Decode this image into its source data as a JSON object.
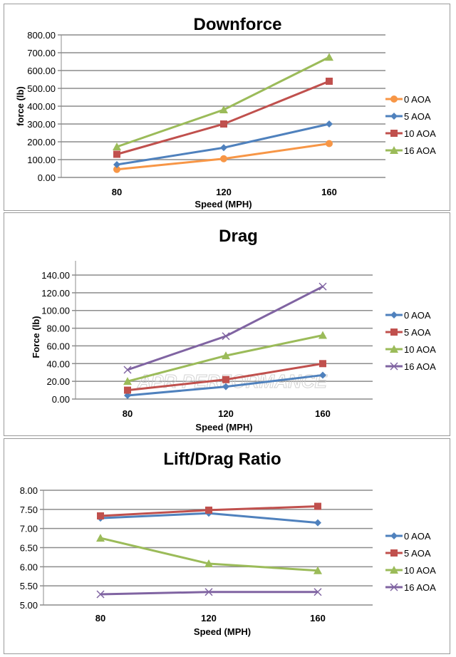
{
  "chart_data": [
    {
      "type": "line",
      "title": "Downforce",
      "xlabel": "Speed (MPH)",
      "ylabel": "force (lb)",
      "categories": [
        "80",
        "120",
        "160"
      ],
      "yticks": [
        "0.00",
        "100.00",
        "200.00",
        "300.00",
        "400.00",
        "500.00",
        "600.00",
        "700.00",
        "800.00"
      ],
      "ylim": [
        0,
        800
      ],
      "grid": true,
      "legend": "right",
      "series": [
        {
          "name": "0 AOA",
          "values": [
            45,
            105,
            190
          ],
          "color": "#F79646",
          "marker": "circle"
        },
        {
          "name": "5 AOA",
          "values": [
            72,
            167,
            300
          ],
          "color": "#4F81BD",
          "marker": "diamond"
        },
        {
          "name": "10 AOA",
          "values": [
            130,
            300,
            540
          ],
          "color": "#C0504D",
          "marker": "square"
        },
        {
          "name": "16 AOA",
          "values": [
            172,
            380,
            675
          ],
          "color": "#9BBB59",
          "marker": "triangle"
        }
      ]
    },
    {
      "type": "line",
      "title": "Drag",
      "xlabel": "Speed (MPH)",
      "ylabel": "Force (lb)",
      "categories": [
        "80",
        "120",
        "160"
      ],
      "yticks": [
        "0.00",
        "20.00",
        "40.00",
        "60.00",
        "80.00",
        "100.00",
        "120.00",
        "140.00"
      ],
      "ylim": [
        0,
        140
      ],
      "grid": true,
      "legend": "right",
      "watermark": "APR PERFORMANCE",
      "series": [
        {
          "name": "0 AOA",
          "values": [
            4,
            14,
            27
          ],
          "color": "#4F81BD",
          "marker": "diamond"
        },
        {
          "name": "5 AOA",
          "values": [
            10,
            22,
            40
          ],
          "color": "#C0504D",
          "marker": "square"
        },
        {
          "name": "10 AOA",
          "values": [
            20,
            49,
            72
          ],
          "color": "#9BBB59",
          "marker": "triangle"
        },
        {
          "name": "16 AOA",
          "values": [
            33,
            71,
            127
          ],
          "color": "#8064A2",
          "marker": "x"
        }
      ]
    },
    {
      "type": "line",
      "title": "Lift/Drag Ratio",
      "xlabel": "Speed (MPH)",
      "ylabel": "",
      "categories": [
        "80",
        "120",
        "160"
      ],
      "yticks": [
        "5.00",
        "5.50",
        "6.00",
        "6.50",
        "7.00",
        "7.50",
        "8.00"
      ],
      "ylim": [
        5,
        8
      ],
      "grid": true,
      "legend": "right",
      "series": [
        {
          "name": "0 AOA",
          "values": [
            7.27,
            7.4,
            7.15
          ],
          "color": "#4F81BD",
          "marker": "diamond"
        },
        {
          "name": "5 AOA",
          "values": [
            7.33,
            7.48,
            7.58
          ],
          "color": "#C0504D",
          "marker": "square"
        },
        {
          "name": "10 AOA",
          "values": [
            6.75,
            6.08,
            5.9
          ],
          "color": "#9BBB59",
          "marker": "triangle"
        },
        {
          "name": "16 AOA",
          "values": [
            5.28,
            5.34,
            5.34
          ],
          "color": "#8064A2",
          "marker": "x"
        }
      ]
    }
  ]
}
